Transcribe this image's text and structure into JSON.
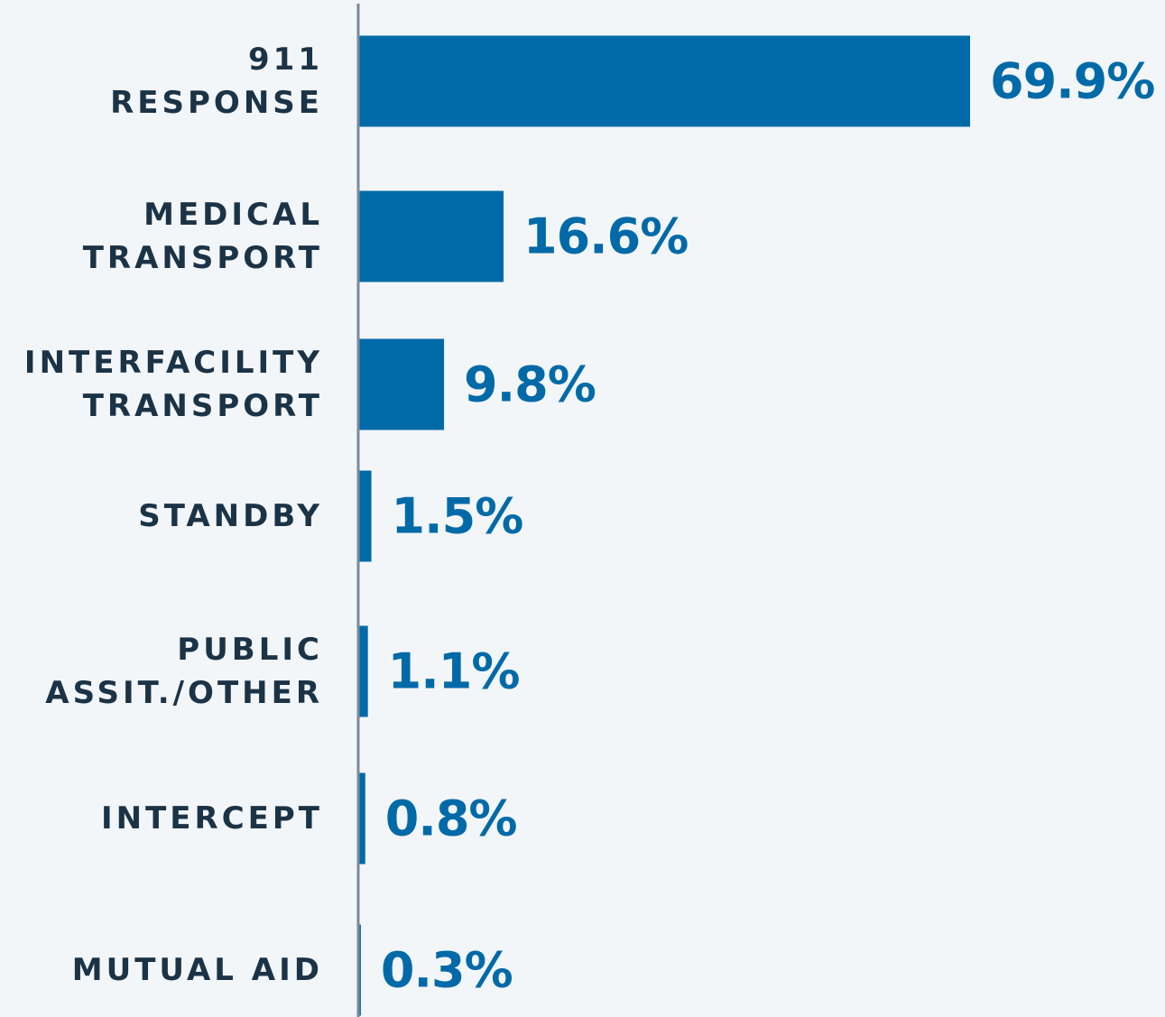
{
  "chart_data": {
    "type": "bar",
    "orientation": "horizontal",
    "categories": [
      "911\nRESPONSE",
      "MEDICAL\nTRANSPORT",
      "INTERFACILITY\nTRANSPORT",
      "STANDBY",
      "PUBLIC\nASSIT./OTHER",
      "INTERCEPT",
      "MUTUAL AID"
    ],
    "values": [
      69.9,
      16.6,
      9.8,
      1.5,
      1.1,
      0.8,
      0.3
    ],
    "value_labels": [
      "69.9%",
      "16.6%",
      "9.8%",
      "1.5%",
      "1.1%",
      "0.8%",
      "0.3%"
    ],
    "color": "#006aa8"
  }
}
